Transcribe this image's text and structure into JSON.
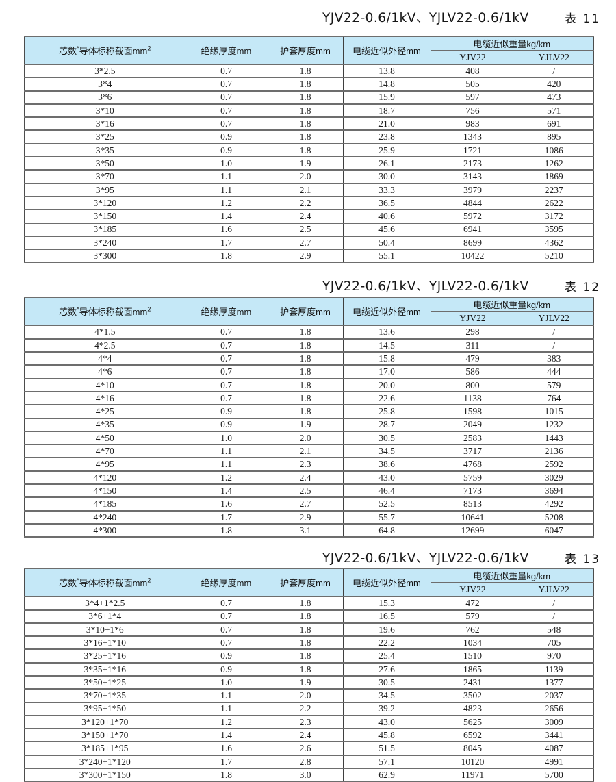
{
  "columns": {
    "c1": {
      "pre": "芯数",
      "sup1": "*",
      "mid": "导体标称截面mm",
      "sup2": "2"
    },
    "c2": "绝缘厚度mm",
    "c3": "护套厚度mm",
    "c4": "电缆近似外径mm",
    "c5_group": "电缆近似重量kg/km",
    "c5": "YJV22",
    "c6": "YJLV22"
  },
  "tables": [
    {
      "title": "YJV22-0.6/1kV、YJLV22-0.6/1kV",
      "table_no": "表 11",
      "rows": [
        [
          "3*2.5",
          "0.7",
          "1.8",
          "13.8",
          "408",
          "/"
        ],
        [
          "3*4",
          "0.7",
          "1.8",
          "14.8",
          "505",
          "420"
        ],
        [
          "3*6",
          "0.7",
          "1.8",
          "15.9",
          "597",
          "473"
        ],
        [
          "3*10",
          "0.7",
          "1.8",
          "18.7",
          "756",
          "571"
        ],
        [
          "3*16",
          "0.7",
          "1.8",
          "21.0",
          "983",
          "691"
        ],
        [
          "3*25",
          "0.9",
          "1.8",
          "23.8",
          "1343",
          "895"
        ],
        [
          "3*35",
          "0.9",
          "1.8",
          "25.9",
          "1721",
          "1086"
        ],
        [
          "3*50",
          "1.0",
          "1.9",
          "26.1",
          "2173",
          "1262"
        ],
        [
          "3*70",
          "1.1",
          "2.0",
          "30.0",
          "3143",
          "1869"
        ],
        [
          "3*95",
          "1.1",
          "2.1",
          "33.3",
          "3979",
          "2237"
        ],
        [
          "3*120",
          "1.2",
          "2.2",
          "36.5",
          "4844",
          "2622"
        ],
        [
          "3*150",
          "1.4",
          "2.4",
          "40.6",
          "5972",
          "3172"
        ],
        [
          "3*185",
          "1.6",
          "2.5",
          "45.6",
          "6941",
          "3595"
        ],
        [
          "3*240",
          "1.7",
          "2.7",
          "50.4",
          "8699",
          "4362"
        ],
        [
          "3*300",
          "1.8",
          "2.9",
          "55.1",
          "10422",
          "5210"
        ]
      ]
    },
    {
      "title": "YJV22-0.6/1kV、YJLV22-0.6/1kV",
      "table_no": "表 12",
      "rows": [
        [
          "4*1.5",
          "0.7",
          "1.8",
          "13.6",
          "298",
          "/"
        ],
        [
          "4*2.5",
          "0.7",
          "1.8",
          "14.5",
          "311",
          "/"
        ],
        [
          "4*4",
          "0.7",
          "1.8",
          "15.8",
          "479",
          "383"
        ],
        [
          "4*6",
          "0.7",
          "1.8",
          "17.0",
          "586",
          "444"
        ],
        [
          "4*10",
          "0.7",
          "1.8",
          "20.0",
          "800",
          "579"
        ],
        [
          "4*16",
          "0.7",
          "1.8",
          "22.6",
          "1138",
          "764"
        ],
        [
          "4*25",
          "0.9",
          "1.8",
          "25.8",
          "1598",
          "1015"
        ],
        [
          "4*35",
          "0.9",
          "1.9",
          "28.7",
          "2049",
          "1232"
        ],
        [
          "4*50",
          "1.0",
          "2.0",
          "30.5",
          "2583",
          "1443"
        ],
        [
          "4*70",
          "1.1",
          "2.1",
          "34.5",
          "3717",
          "2136"
        ],
        [
          "4*95",
          "1.1",
          "2.3",
          "38.6",
          "4768",
          "2592"
        ],
        [
          "4*120",
          "1.2",
          "2.4",
          "43.0",
          "5759",
          "3029"
        ],
        [
          "4*150",
          "1.4",
          "2.5",
          "46.4",
          "7173",
          "3694"
        ],
        [
          "4*185",
          "1.6",
          "2.7",
          "52.5",
          "8513",
          "4292"
        ],
        [
          "4*240",
          "1.7",
          "2.9",
          "55.7",
          "10641",
          "5208"
        ],
        [
          "4*300",
          "1.8",
          "3.1",
          "64.8",
          "12699",
          "6047"
        ]
      ]
    },
    {
      "title": "YJV22-0.6/1kV、YJLV22-0.6/1kV",
      "table_no": "表 13",
      "rows": [
        [
          "3*4+1*2.5",
          "0.7",
          "1.8",
          "15.3",
          "472",
          "/"
        ],
        [
          "3*6+1*4",
          "0.7",
          "1.8",
          "16.5",
          "579",
          "/"
        ],
        [
          "3*10+1*6",
          "0.7",
          "1.8",
          "19.6",
          "762",
          "548"
        ],
        [
          "3*16+1*10",
          "0.7",
          "1.8",
          "22.2",
          "1034",
          "705"
        ],
        [
          "3*25+1*16",
          "0.9",
          "1.8",
          "25.4",
          "1510",
          "970"
        ],
        [
          "3*35+1*16",
          "0.9",
          "1.8",
          "27.6",
          "1865",
          "1139"
        ],
        [
          "3*50+1*25",
          "1.0",
          "1.9",
          "30.5",
          "2431",
          "1377"
        ],
        [
          "3*70+1*35",
          "1.1",
          "2.0",
          "34.5",
          "3502",
          "2037"
        ],
        [
          "3*95+1*50",
          "1.1",
          "2.2",
          "39.2",
          "4823",
          "2656"
        ],
        [
          "3*120+1*70",
          "1.2",
          "2.3",
          "43.0",
          "5625",
          "3009"
        ],
        [
          "3*150+1*70",
          "1.4",
          "2.4",
          "45.8",
          "6592",
          "3441"
        ],
        [
          "3*185+1*95",
          "1.6",
          "2.6",
          "51.5",
          "8045",
          "4087"
        ],
        [
          "3*240+1*120",
          "1.7",
          "2.8",
          "57.1",
          "10120",
          "4991"
        ],
        [
          "3*300+1*150",
          "1.8",
          "3.0",
          "62.9",
          "11971",
          "5700"
        ]
      ]
    }
  ],
  "colors": {
    "header_bg": "#c5e8f7",
    "border_dark": "#3f3f3f",
    "border_row": "#6d6d6d",
    "text": "#1c1c1c"
  }
}
